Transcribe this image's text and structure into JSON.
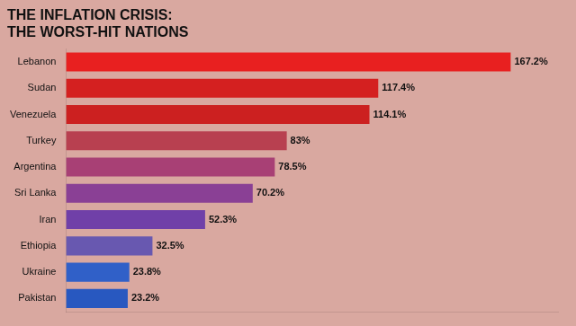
{
  "chart_data": {
    "type": "bar",
    "orientation": "horizontal",
    "title": [
      "THE INFLATION CRISIS:",
      "THE WORST-HIT NATIONS"
    ],
    "categories": [
      "Lebanon",
      "Sudan",
      "Venezuela",
      "Turkey",
      "Argentina",
      "Sri Lanka",
      "Iran",
      "Ethiopia",
      "Ukraine",
      "Pakistan"
    ],
    "values": [
      167.2,
      117.4,
      114.1,
      83.0,
      78.5,
      70.2,
      52.3,
      32.5,
      23.8,
      23.2
    ],
    "value_labels": [
      "167.2%",
      "117.4%",
      "114.1%",
      "83%",
      "78.5%",
      "70.2%",
      "52.3%",
      "32.5%",
      "23.8%",
      "23.2%"
    ],
    "colors": [
      "#e82020",
      "#d42020",
      "#cc2020",
      "#b84050",
      "#a84075",
      "#8a4095",
      "#7040a8",
      "#6858b0",
      "#3060c8",
      "#2858c0"
    ],
    "xlim": [
      0,
      185
    ],
    "grid": false,
    "data_labels": true,
    "tick_labels": "y"
  }
}
